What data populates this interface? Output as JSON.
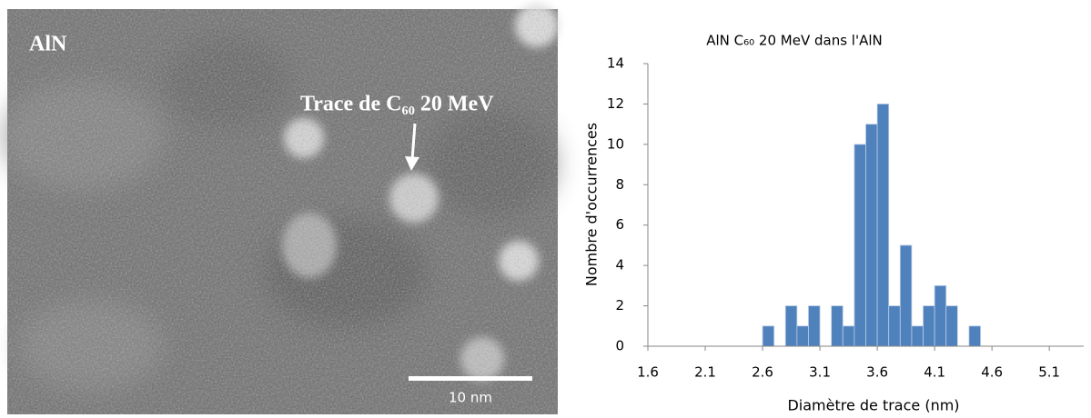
{
  "image": {
    "label": "AlN",
    "annotation": "Trace de C₆₀ 20 MeV",
    "scale_bar": "10 nm"
  },
  "chart_data": {
    "type": "histogram",
    "title": "AlN C₆₀ 20 MeV dans l'AlN",
    "x_label": "Diamètre de trace (nm)",
    "y_label": "Nombre d'occurrences",
    "bins": [
      2.6,
      2.7,
      2.8,
      2.9,
      3.0,
      3.1,
      3.2,
      3.3,
      3.4,
      3.5,
      3.6,
      3.7,
      3.8,
      3.9,
      4.0,
      4.1,
      4.2,
      4.3,
      4.4,
      4.5
    ],
    "values": [
      1,
      0,
      2,
      1,
      2,
      0,
      2,
      1,
      10,
      11,
      12,
      2,
      5,
      1,
      2,
      3,
      2,
      0,
      1
    ],
    "color": "#4f81bd",
    "xlim": [
      1.6,
      5.4
    ],
    "xticks": [
      1.6,
      2.1,
      2.6,
      3.1,
      3.6,
      4.1,
      4.6,
      5.1
    ],
    "ylim": [
      0,
      14
    ],
    "yticks": [
      0,
      2,
      4,
      6,
      8,
      10,
      12,
      14
    ],
    "grid": false
  }
}
